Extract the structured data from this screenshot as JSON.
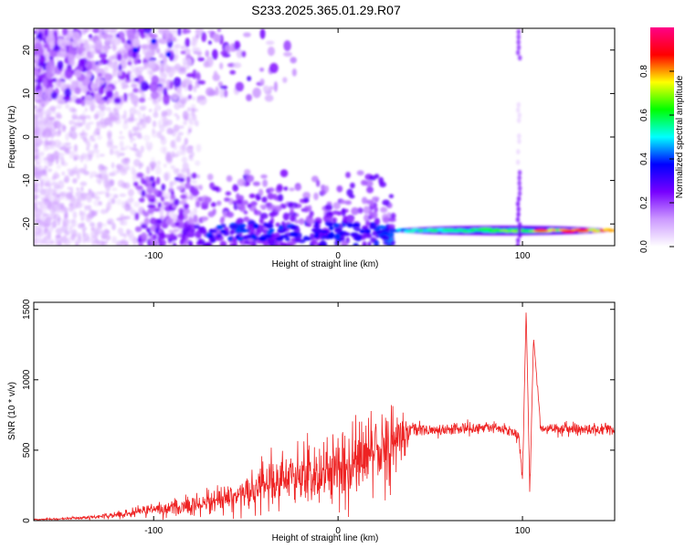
{
  "title": "S233.2025.365.01.29.R07",
  "chart_data": [
    {
      "type": "heatmap",
      "xlabel": "Height of straight line (km)",
      "ylabel": "Frequency (Hz)",
      "xlim": [
        -165,
        150
      ],
      "ylim": [
        -25,
        25
      ],
      "xticks": [
        -100,
        0,
        100
      ],
      "yticks": [
        -20,
        -10,
        0,
        10,
        20
      ],
      "colorbar": {
        "label": "Normalized spectral amplitude",
        "range": [
          0,
          1
        ],
        "ticks": [
          "0.0",
          "0.2",
          "0.4",
          "0.6",
          "0.8"
        ],
        "colormap": "white-violet-blue-cyan-green-yellow-red-magenta",
        "stops": [
          "#ffffff",
          "#cc99ff",
          "#7700ff",
          "#0000ff",
          "#00ffff",
          "#00ff00",
          "#ffff00",
          "#ff0000",
          "#ff0088"
        ]
      },
      "features": [
        {
          "name": "strong band",
          "x_range": [
            30,
            148
          ],
          "frequency_hz": -21.5,
          "amplitude": 0.85
        },
        {
          "name": "lower band clusters",
          "x_range": [
            -80,
            30
          ],
          "frequency_hz_range": [
            -24,
            -20
          ],
          "amplitude": 0.35
        },
        {
          "name": "upper band clusters",
          "x_range": [
            -165,
            -20
          ],
          "frequency_hz_range": [
            8,
            25
          ],
          "amplitude": 0.25
        },
        {
          "name": "vertical stripe",
          "x": 98,
          "frequency_hz_range": [
            -25,
            25
          ],
          "amplitude": 0.2
        }
      ]
    },
    {
      "type": "line",
      "xlabel": "Height of straight line (km)",
      "ylabel": "SNR (10 * v/v)",
      "xlim": [
        -165,
        150
      ],
      "ylim": [
        0,
        1550
      ],
      "xticks": [
        -100,
        0,
        100
      ],
      "yticks": [
        0,
        500,
        1000,
        1500
      ],
      "color": "#ee2222",
      "x": [
        -165,
        -150,
        -140,
        -130,
        -120,
        -110,
        -100,
        -90,
        -80,
        -70,
        -60,
        -50,
        -40,
        -30,
        -20,
        -10,
        0,
        10,
        20,
        30,
        40,
        50,
        60,
        70,
        80,
        90,
        98,
        100,
        102,
        104,
        106,
        110,
        120,
        130,
        140,
        150
      ],
      "y": [
        8,
        12,
        20,
        28,
        40,
        60,
        80,
        90,
        105,
        130,
        160,
        200,
        260,
        300,
        330,
        350,
        360,
        420,
        480,
        560,
        650,
        640,
        650,
        655,
        660,
        650,
        620,
        300,
        1500,
        200,
        1300,
        650,
        650,
        650,
        650,
        650
      ],
      "noise_amplitude": [
        6,
        8,
        12,
        18,
        25,
        35,
        50,
        60,
        80,
        90,
        100,
        150,
        200,
        240,
        220,
        250,
        260,
        320,
        380,
        380,
        60,
        55,
        50,
        50,
        50,
        50,
        60,
        80,
        0,
        50,
        0,
        50,
        50,
        50,
        50,
        50
      ]
    }
  ]
}
